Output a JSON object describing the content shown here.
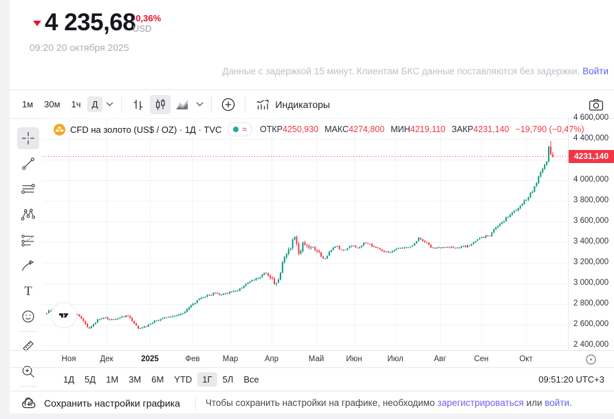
{
  "header": {
    "price": "4 235,68",
    "change_percent": "-0,36%",
    "currency": "USD",
    "timestamp": "09:20 20 октября 2025",
    "delay_note": "Данные с задержкой 15 минут. Клиентам БКС данные поставляются без задержки.",
    "login_link": "Войти"
  },
  "toolbar": {
    "intervals": [
      "1м",
      "30м",
      "1ч",
      "Д"
    ],
    "selected_interval": "Д",
    "chart_types": [
      "bars",
      "candles",
      "area"
    ],
    "selected_chart_type": "candles",
    "indicators_label": "Индикаторы"
  },
  "sidebar": {
    "tools": [
      "crosshair",
      "trend-line",
      "parallel-lines",
      "xabcd-pattern",
      "projection",
      "brush",
      "text",
      "emoji",
      "ruler",
      "zoom-in",
      "magnet"
    ],
    "selected_tool": "crosshair",
    "dividers_after": [
      "emoji",
      "zoom-in"
    ]
  },
  "legend": {
    "symbol_title": "CFD на золото (US$ / OZ) · 1Д · TVC",
    "ohlc": [
      {
        "label": "ОТКР",
        "value": "4250,930"
      },
      {
        "label": "МАКС",
        "value": "4274,800"
      },
      {
        "label": "МИН",
        "value": "4219,110"
      },
      {
        "label": "ЗАКР",
        "value": "4231,140"
      }
    ],
    "change": "−19,790 (−0,47%)"
  },
  "price_scale": {
    "labels": [
      "4 600,000",
      "4 400,000",
      "4 200,000",
      "4 000,000",
      "3 800,000",
      "3 600,000",
      "3 400,000",
      "3 200,000",
      "3 000,000",
      "2 800,000",
      "2 600,000",
      "2 400,000"
    ],
    "current_price_label": "4231,140"
  },
  "time_scale": {
    "labels": [
      "Ноя",
      "Дек",
      "2025",
      "Фев",
      "Мар",
      "Апр",
      "Май",
      "Июн",
      "Июл",
      "Авг",
      "Сен",
      "Окт"
    ]
  },
  "range_bar": {
    "ranges": [
      "1Д",
      "5Д",
      "1М",
      "3М",
      "6М",
      "YTD",
      "1Г",
      "5Л",
      "Все"
    ],
    "selected_range": "1Г",
    "clock": "09:51:20 UTC+3"
  },
  "footer": {
    "save_button": "Сохранить настройки графика",
    "note_prefix": "Чтобы сохранить настройки на графике, необходимо ",
    "register_link": "зарегистрироваться",
    "note_middle": " или ",
    "login_link": "войти",
    "note_suffix": "."
  },
  "colors": {
    "header_red": "#e8112d",
    "link_blue": "#5b63f2",
    "register_purple": "#7d5bef",
    "up": "#089981",
    "down": "#f23645",
    "gold_icon": "#f5a623",
    "pill_dot_teal": "#22ab94",
    "pill_approx_pink": "#f45fa4"
  },
  "chart_data": {
    "type": "candlestick",
    "title": "CFD на золото (US$ / OZ)",
    "interval": "1Д",
    "exchange": "TVC",
    "open": 4250.93,
    "high": 4274.8,
    "low": 4219.11,
    "close": 4231.14,
    "change": -19.79,
    "change_pct": -0.47,
    "current_price": 4231.14,
    "y_range": [
      2400,
      4600
    ],
    "y_ticks": [
      4600,
      4400,
      4200,
      4000,
      3800,
      3600,
      3400,
      3200,
      3000,
      2800,
      2600,
      2400
    ],
    "x_labels": [
      "Ноя",
      "Дек",
      "2025",
      "Фев",
      "Мар",
      "Апр",
      "Май",
      "Июн",
      "Июл",
      "Авг",
      "Сен",
      "Окт"
    ],
    "grid": true,
    "up_color": "#089981",
    "down_color": "#f23645",
    "num_candles": 250,
    "price_path_anchors": [
      [
        0.0,
        2720
      ],
      [
        0.015,
        2745
      ],
      [
        0.03,
        2785
      ],
      [
        0.045,
        2735
      ],
      [
        0.06,
        2690
      ],
      [
        0.075,
        2600
      ],
      [
        0.085,
        2560
      ],
      [
        0.1,
        2655
      ],
      [
        0.115,
        2665
      ],
      [
        0.13,
        2640
      ],
      [
        0.145,
        2680
      ],
      [
        0.16,
        2700
      ],
      [
        0.17,
        2630
      ],
      [
        0.18,
        2565
      ],
      [
        0.195,
        2585
      ],
      [
        0.21,
        2640
      ],
      [
        0.225,
        2655
      ],
      [
        0.24,
        2665
      ],
      [
        0.255,
        2690
      ],
      [
        0.27,
        2720
      ],
      [
        0.285,
        2775
      ],
      [
        0.3,
        2830
      ],
      [
        0.315,
        2880
      ],
      [
        0.33,
        2910
      ],
      [
        0.345,
        2880
      ],
      [
        0.36,
        2915
      ],
      [
        0.375,
        2940
      ],
      [
        0.39,
        2985
      ],
      [
        0.405,
        3025
      ],
      [
        0.42,
        3060
      ],
      [
        0.432,
        3120
      ],
      [
        0.445,
        3040
      ],
      [
        0.455,
        2985
      ],
      [
        0.468,
        3220
      ],
      [
        0.48,
        3335
      ],
      [
        0.49,
        3465
      ],
      [
        0.498,
        3290
      ],
      [
        0.508,
        3390
      ],
      [
        0.52,
        3340
      ],
      [
        0.535,
        3300
      ],
      [
        0.548,
        3230
      ],
      [
        0.56,
        3320
      ],
      [
        0.572,
        3355
      ],
      [
        0.585,
        3310
      ],
      [
        0.6,
        3380
      ],
      [
        0.615,
        3355
      ],
      [
        0.63,
        3395
      ],
      [
        0.645,
        3365
      ],
      [
        0.66,
        3340
      ],
      [
        0.675,
        3295
      ],
      [
        0.69,
        3330
      ],
      [
        0.705,
        3345
      ],
      [
        0.72,
        3360
      ],
      [
        0.735,
        3430
      ],
      [
        0.748,
        3390
      ],
      [
        0.762,
        3340
      ],
      [
        0.775,
        3355
      ],
      [
        0.79,
        3345
      ],
      [
        0.805,
        3340
      ],
      [
        0.82,
        3365
      ],
      [
        0.835,
        3375
      ],
      [
        0.85,
        3415
      ],
      [
        0.862,
        3450
      ],
      [
        0.875,
        3480
      ],
      [
        0.888,
        3555
      ],
      [
        0.9,
        3600
      ],
      [
        0.912,
        3650
      ],
      [
        0.924,
        3705
      ],
      [
        0.936,
        3760
      ],
      [
        0.948,
        3820
      ],
      [
        0.958,
        3875
      ],
      [
        0.968,
        3975
      ],
      [
        0.978,
        4090
      ],
      [
        0.988,
        4200
      ],
      [
        0.994,
        4330
      ],
      [
        1.0,
        4231.14
      ]
    ]
  }
}
